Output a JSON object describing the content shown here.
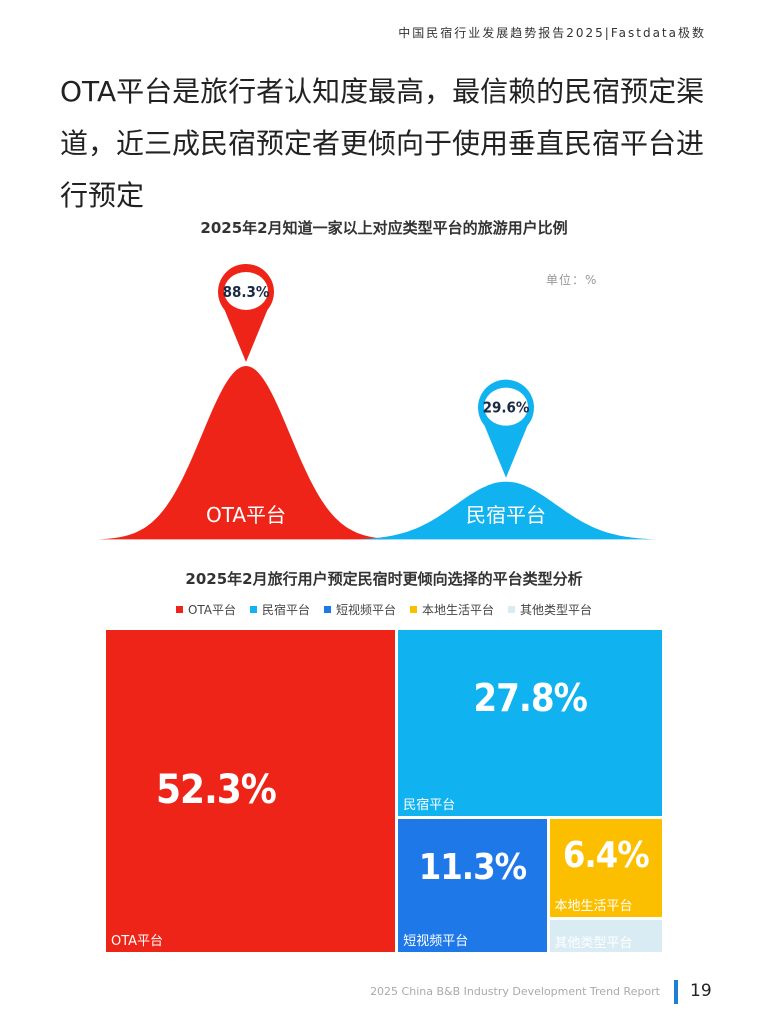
{
  "header": {
    "report_title": "中国民宿行业发展趋势报告2025|Fastdata极数"
  },
  "headline": "OTA平台是旅行者认知度最高，最信赖的民宿预定渠道，近三成民宿预定者更倾向于使用垂直民宿平台进行预定",
  "colors": {
    "ota": "#ee2418",
    "homestay": "#10b2f0",
    "short_video": "#1e78e8",
    "local_life": "#fbbf00",
    "other": "#d9ecf4"
  },
  "footer": {
    "report_name": "2025 China B&B Industry Development Trend Report",
    "page_number": "19"
  },
  "chart_data": [
    {
      "type": "area",
      "title": "2025年2月知道一家以上对应类型平台的旅游用户比例",
      "unit": "单位：%",
      "categories": [
        "OTA平台",
        "民宿平台"
      ],
      "values": [
        88.3,
        29.6
      ],
      "value_labels": [
        "88.3%",
        "29.6%"
      ],
      "colors": [
        "#ee2418",
        "#10b2f0"
      ]
    },
    {
      "type": "treemap",
      "title": "2025年2月旅行用户预定民宿时更倾向选择的平台类型分析",
      "legend_position": "top",
      "categories": [
        "OTA平台",
        "民宿平台",
        "短视频平台",
        "本地生活平台",
        "其他类型平台"
      ],
      "values": [
        52.3,
        27.8,
        11.3,
        6.4,
        2.2
      ],
      "value_labels": [
        "52.3%",
        "27.8%",
        "11.3%",
        "6.4%",
        ""
      ],
      "colors": [
        "#ee2418",
        "#10b2f0",
        "#1e78e8",
        "#fbbf00",
        "#d9ecf4"
      ]
    }
  ]
}
